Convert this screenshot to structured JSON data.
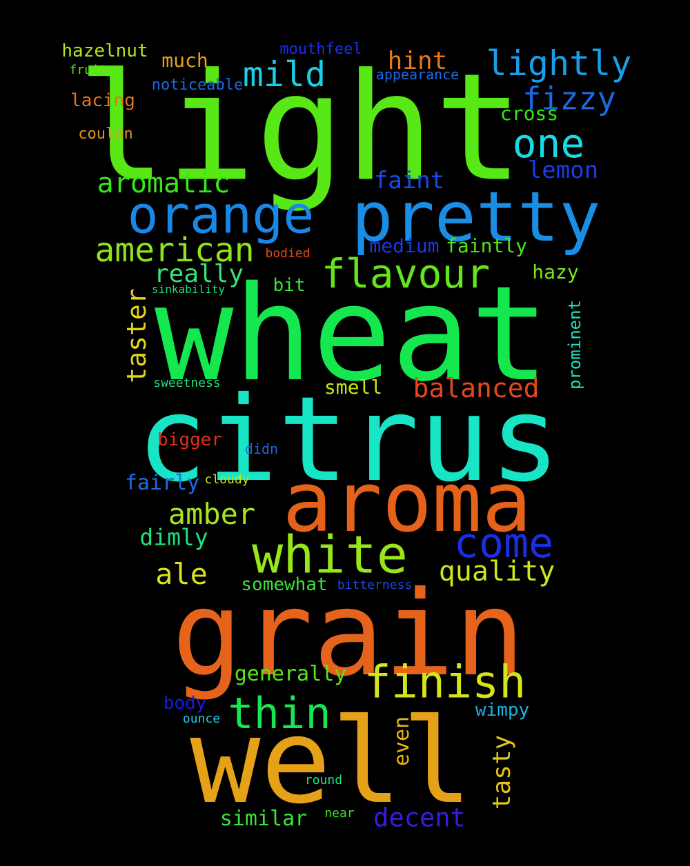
{
  "words": [
    {
      "text": "light",
      "color": "#58e816"
    },
    {
      "text": "wheat",
      "color": "#15e84f"
    },
    {
      "text": "citrus",
      "color": "#17e5c6"
    },
    {
      "text": "grain",
      "color": "#e5631a"
    },
    {
      "text": "well",
      "color": "#e5a117"
    },
    {
      "text": "aroma",
      "color": "#e5621a"
    },
    {
      "text": "pretty",
      "color": "#1a8ee5"
    },
    {
      "text": "orange",
      "color": "#1a86e5"
    },
    {
      "text": "white",
      "color": "#98e51a"
    },
    {
      "text": "come",
      "color": "#1a2fe5"
    },
    {
      "text": "finish",
      "color": "#d4e51a"
    },
    {
      "text": "flavour",
      "color": "#63e51a"
    },
    {
      "text": "one",
      "color": "#17dce5"
    },
    {
      "text": "thin",
      "color": "#15e84f"
    },
    {
      "text": "american",
      "color": "#8fe51a"
    },
    {
      "text": "lightly",
      "color": "#1a9ee5"
    },
    {
      "text": "mild",
      "color": "#1ad0e5"
    },
    {
      "text": "fizzy",
      "color": "#1a6ae5"
    },
    {
      "text": "aromatic",
      "color": "#38e51a"
    },
    {
      "text": "taster",
      "color": "#e5d41a"
    },
    {
      "text": "balanced",
      "color": "#e5481a"
    },
    {
      "text": "amber",
      "color": "#a8e51a"
    },
    {
      "text": "quality",
      "color": "#cfe51a"
    },
    {
      "text": "ale",
      "color": "#d8e51a"
    },
    {
      "text": "tasty",
      "color": "#e5c51a"
    },
    {
      "text": "decent",
      "color": "#3a1ae5"
    },
    {
      "text": "really",
      "color": "#38e57a"
    },
    {
      "text": "hint",
      "color": "#e57a1a"
    },
    {
      "text": "faint",
      "color": "#1a4be5"
    },
    {
      "text": "lemon",
      "color": "#1a3be5"
    },
    {
      "text": "even",
      "color": "#e5b51a"
    },
    {
      "text": "dimly",
      "color": "#1ae57e"
    },
    {
      "text": "fairly",
      "color": "#1a6ee5"
    },
    {
      "text": "generally",
      "color": "#58e51a"
    },
    {
      "text": "similar",
      "color": "#38e538"
    },
    {
      "text": "smell",
      "color": "#c4e51a"
    },
    {
      "text": "faintly",
      "color": "#4ee51a"
    },
    {
      "text": "medium",
      "color": "#1a3ae5"
    },
    {
      "text": "hazy",
      "color": "#7ee51a"
    },
    {
      "text": "cross",
      "color": "#38e51a"
    },
    {
      "text": "hazelnut",
      "color": "#b4e51a"
    },
    {
      "text": "much",
      "color": "#e5a01a"
    },
    {
      "text": "lacing",
      "color": "#e5731a"
    },
    {
      "text": "body",
      "color": "#1a1ae5"
    },
    {
      "text": "wimpy",
      "color": "#1ab4e5"
    },
    {
      "text": "bigger",
      "color": "#e52e1a"
    },
    {
      "text": "somewhat",
      "color": "#38e538"
    },
    {
      "text": "prominent",
      "color": "#1ae5b9"
    },
    {
      "text": "bit",
      "color": "#38e538"
    },
    {
      "text": "mouthfeel",
      "color": "#1a2fe5"
    },
    {
      "text": "noticeable",
      "color": "#1a6ae5"
    },
    {
      "text": "appearance",
      "color": "#1a6ae5"
    },
    {
      "text": "couldn",
      "color": "#e5961a"
    },
    {
      "text": "fruity",
      "color": "#58e51a"
    },
    {
      "text": "bodied",
      "color": "#e5491a"
    },
    {
      "text": "sinkability",
      "color": "#1ae57e"
    },
    {
      "text": "sweetness",
      "color": "#1ae57e"
    },
    {
      "text": "didn",
      "color": "#1a6ae5"
    },
    {
      "text": "cloudy",
      "color": "#c4e51a"
    },
    {
      "text": "bitterness",
      "color": "#1a4be5"
    },
    {
      "text": "ounce",
      "color": "#1ad0e5"
    },
    {
      "text": "round",
      "color": "#1ae57e"
    },
    {
      "text": "near",
      "color": "#38e51a"
    }
  ]
}
